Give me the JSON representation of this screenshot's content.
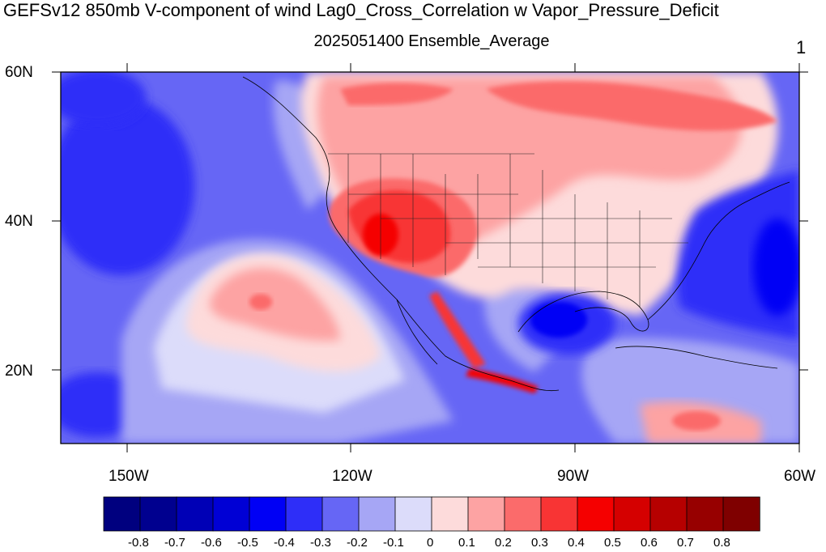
{
  "title": "GEFSv12 850mb V-component of wind Lag0_Cross_Correlation w Vapor_Pressure_Deficit",
  "subtitle": "2025051400 Ensemble_Average",
  "panel_number": "1",
  "lat_labels": [
    "60N",
    "40N",
    "20N"
  ],
  "lon_labels": [
    "150W",
    "120W",
    "90W",
    "60W"
  ],
  "colorbar": {
    "colors": [
      "#00007f",
      "#00008f",
      "#0000b6",
      "#0000d5",
      "#0000f5",
      "#2e2ef8",
      "#6666f5",
      "#a6a6f5",
      "#dcdcfa",
      "#fddbdb",
      "#fda3a3",
      "#fb6b6b",
      "#f83434",
      "#f50000",
      "#d50000",
      "#b60000",
      "#970000",
      "#7f0000"
    ],
    "labels": [
      "-0.8",
      "-0.7",
      "-0.6",
      "-0.5",
      "-0.4",
      "-0.3",
      "-0.2",
      "-0.1",
      "0",
      "0.1",
      "0.2",
      "0.3",
      "0.4",
      "0.5",
      "0.6",
      "0.7",
      "0.8"
    ]
  },
  "map": {
    "lon_range": [
      -160,
      -60
    ],
    "lat_range": [
      10,
      60
    ]
  }
}
